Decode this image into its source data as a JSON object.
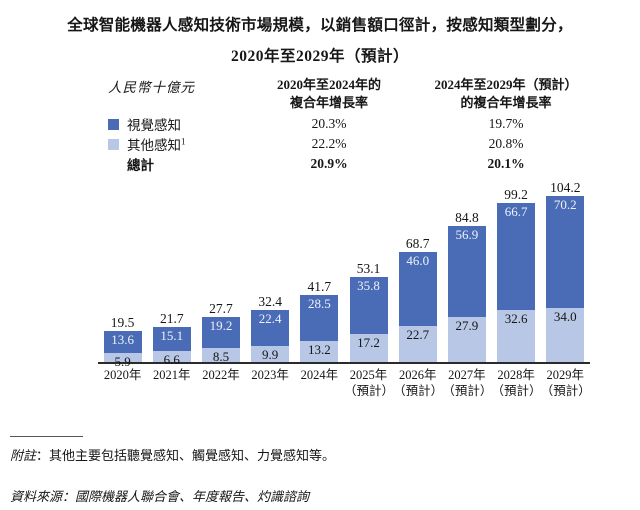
{
  "title": {
    "line1": "全球智能機器人感知技術市場規模，以銷售額口徑計，按感知類型劃分，",
    "line2": "2020年至2029年（預計）"
  },
  "unit_label": "人民幣十億元",
  "legend": {
    "visual": "視覺感知",
    "other": "其他感知",
    "other_sup": "1",
    "total": "總計"
  },
  "cagr_table": {
    "columns": [
      {
        "header": "2020年至2024年的\n複合年增長率",
        "visual": "20.3%",
        "other": "22.2%",
        "total": "20.9%"
      },
      {
        "header": "2024年至2029年（預計）\n的複合年增長率",
        "visual": "19.7%",
        "other": "20.8%",
        "total": "20.1%"
      }
    ]
  },
  "chart_data": {
    "type": "bar",
    "stacked": true,
    "title": "全球智能機器人感知技術市場規模，以銷售額口徑計，按感知類型劃分，2020年至2029年（預計）",
    "ylabel": "人民幣十億元",
    "categories": [
      "2020年",
      "2021年",
      "2022年",
      "2023年",
      "2024年",
      "2025年\n（預計）",
      "2026年\n（預計）",
      "2027年\n（預計）",
      "2028年\n（預計）",
      "2029年\n（預計）"
    ],
    "series": [
      {
        "name": "視覺感知",
        "color": "#4a6cb6",
        "label_color": "#eef2fa",
        "values": [
          13.6,
          15.1,
          19.2,
          22.4,
          28.5,
          35.8,
          46.0,
          56.9,
          66.7,
          70.2
        ]
      },
      {
        "name": "其他感知",
        "color": "#b7c7e5",
        "label_color": "#161616",
        "values": [
          5.9,
          6.6,
          8.5,
          9.9,
          13.2,
          17.2,
          22.7,
          27.9,
          32.6,
          34.0
        ]
      }
    ],
    "totals": [
      19.5,
      21.7,
      27.7,
      32.4,
      41.7,
      53.1,
      68.7,
      84.8,
      99.2,
      104.2
    ],
    "ylim": [
      0,
      110
    ],
    "grid": false,
    "legend_position": "top-left"
  },
  "footnote": {
    "label": "附註",
    "text": "：其他主要包括聽覺感知、觸覺感知、力覺感知等。"
  },
  "source": "資料來源：國際機器人聯合會、年度報告、灼識諮詢"
}
